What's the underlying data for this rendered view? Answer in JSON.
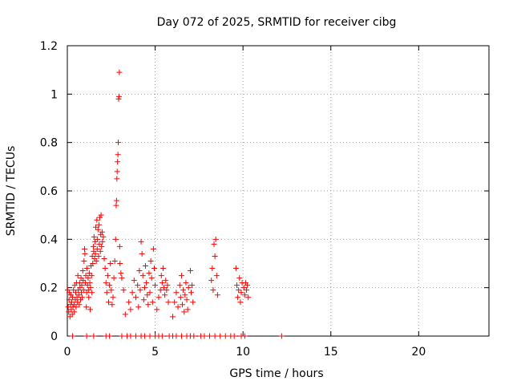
{
  "chart_data": {
    "type": "scatter",
    "title": "Day 072 of 2025, SRMTID for receiver cibg",
    "xlabel": "GPS time / hours",
    "ylabel": "SRMTID / TECUs",
    "xlim": [
      0,
      24
    ],
    "ylim": [
      0,
      1.2
    ],
    "xticks": [
      0,
      5,
      10,
      15,
      20
    ],
    "yticks": [
      0,
      0.2,
      0.4,
      0.6,
      0.8,
      1,
      1.2
    ],
    "xtick_labels": [
      "0",
      "5",
      "10",
      "15",
      "20"
    ],
    "ytick_labels": [
      "0",
      "0.2",
      "0.4",
      "0.6",
      "0.8",
      "1",
      "1.2"
    ],
    "grid": true,
    "marker": "+",
    "series": [
      {
        "name": "SRMTID",
        "color": "#ff0000",
        "points": [
          [
            0.02,
            0.19
          ],
          [
            0.05,
            0.12
          ],
          [
            0.08,
            0.1
          ],
          [
            0.1,
            0.15
          ],
          [
            0.12,
            0.18
          ],
          [
            0.15,
            0.08
          ],
          [
            0.18,
            0.13
          ],
          [
            0.2,
            0.17
          ],
          [
            0.22,
            0.11
          ],
          [
            0.25,
            0.14
          ],
          [
            0.28,
            0.09
          ],
          [
            0.3,
            0.16
          ],
          [
            0.32,
            0.12
          ],
          [
            0.35,
            0.19
          ],
          [
            0.38,
            0.13
          ],
          [
            0.4,
            0.1
          ],
          [
            0.42,
            0.21
          ],
          [
            0.45,
            0.15
          ],
          [
            0.48,
            0.18
          ],
          [
            0.5,
            0.12
          ],
          [
            0.52,
            0.22
          ],
          [
            0.55,
            0.16
          ],
          [
            0.58,
            0.14
          ],
          [
            0.6,
            0.25
          ],
          [
            0.62,
            0.19
          ],
          [
            0.65,
            0.17
          ],
          [
            0.68,
            0.13
          ],
          [
            0.7,
            0.22
          ],
          [
            0.72,
            0.2
          ],
          [
            0.75,
            0.15
          ],
          [
            0.78,
            0.24
          ],
          [
            0.8,
            0.18
          ],
          [
            0.82,
            0.21
          ],
          [
            0.85,
            0.16
          ],
          [
            0.88,
            0.27
          ],
          [
            0.9,
            0.23
          ],
          [
            0.92,
            0.19
          ],
          [
            0.95,
            0.31
          ],
          [
            0.98,
            0.36
          ],
          [
            1.0,
            0.34
          ],
          [
            1.02,
            0.22
          ],
          [
            1.05,
            0.25
          ],
          [
            1.08,
            0.12
          ],
          [
            1.1,
            0.18
          ],
          [
            1.12,
            0.28
          ],
          [
            1.15,
            0.21
          ],
          [
            1.18,
            0.24
          ],
          [
            1.2,
            0.19
          ],
          [
            1.22,
            0.16
          ],
          [
            1.25,
            0.26
          ],
          [
            1.28,
            0.22
          ],
          [
            1.3,
            0.11
          ],
          [
            1.32,
            0.2
          ],
          [
            1.35,
            0.29
          ],
          [
            1.38,
            0.25
          ],
          [
            1.4,
            0.18
          ],
          [
            1.42,
            0.33
          ],
          [
            1.45,
            0.3
          ],
          [
            1.48,
            0.37
          ],
          [
            1.5,
            0.35
          ],
          [
            1.52,
            0.41
          ],
          [
            1.55,
            0.32
          ],
          [
            1.58,
            0.39
          ],
          [
            1.6,
            0.34
          ],
          [
            1.62,
            0.45
          ],
          [
            1.65,
            0.31
          ],
          [
            1.68,
            0.48
          ],
          [
            1.7,
            0.36
          ],
          [
            1.72,
            0.4
          ],
          [
            1.75,
            0.44
          ],
          [
            1.78,
            0.33
          ],
          [
            1.8,
            0.46
          ],
          [
            1.82,
            0.38
          ],
          [
            1.85,
            0.49
          ],
          [
            1.88,
            0.35
          ],
          [
            1.9,
            0.42
          ],
          [
            1.92,
            0.5
          ],
          [
            1.95,
            0.37
          ],
          [
            1.98,
            0.43
          ],
          [
            2.0,
            0.39
          ],
          [
            2.05,
            0.41
          ],
          [
            2.1,
            0.32
          ],
          [
            2.15,
            0.28
          ],
          [
            2.2,
            0.22
          ],
          [
            2.25,
            0.18
          ],
          [
            2.3,
            0.25
          ],
          [
            2.35,
            0.14
          ],
          [
            2.4,
            0.21
          ],
          [
            2.45,
            0.3
          ],
          [
            2.5,
            0.19
          ],
          [
            2.55,
            0.13
          ],
          [
            2.6,
            0.16
          ],
          [
            2.65,
            0.24
          ],
          [
            2.7,
            0.31
          ],
          [
            2.75,
            0.4
          ],
          [
            2.78,
            0.54
          ],
          [
            2.8,
            0.56
          ],
          [
            2.82,
            0.65
          ],
          [
            2.84,
            0.68
          ],
          [
            2.86,
            0.72
          ],
          [
            2.88,
            0.75
          ],
          [
            2.9,
            0.8
          ],
          [
            2.92,
            0.98
          ],
          [
            2.94,
            0.99
          ],
          [
            2.96,
            1.09
          ],
          [
            2.98,
            0.37
          ],
          [
            3.0,
            0.3
          ],
          [
            3.05,
            0.26
          ],
          [
            3.1,
            0.24
          ],
          [
            3.2,
            0.19
          ],
          [
            3.3,
            0.09
          ],
          [
            3.5,
            0.14
          ],
          [
            3.6,
            0.11
          ],
          [
            3.7,
            0.18
          ],
          [
            3.8,
            0.23
          ],
          [
            3.9,
            0.16
          ],
          [
            4.0,
            0.21
          ],
          [
            4.05,
            0.12
          ],
          [
            4.1,
            0.27
          ],
          [
            4.15,
            0.19
          ],
          [
            4.2,
            0.39
          ],
          [
            4.25,
            0.34
          ],
          [
            4.3,
            0.25
          ],
          [
            4.35,
            0.15
          ],
          [
            4.4,
            0.2
          ],
          [
            4.45,
            0.29
          ],
          [
            4.5,
            0.22
          ],
          [
            4.55,
            0.17
          ],
          [
            4.6,
            0.13
          ],
          [
            4.65,
            0.26
          ],
          [
            4.7,
            0.18
          ],
          [
            4.75,
            0.31
          ],
          [
            4.8,
            0.24
          ],
          [
            4.85,
            0.14
          ],
          [
            4.9,
            0.36
          ],
          [
            4.95,
            0.28
          ],
          [
            5.0,
            0.21
          ],
          [
            5.1,
            0.11
          ],
          [
            5.2,
            0.16
          ],
          [
            5.3,
            0.19
          ],
          [
            5.35,
            0.25
          ],
          [
            5.4,
            0.22
          ],
          [
            5.45,
            0.28
          ],
          [
            5.5,
            0.2
          ],
          [
            5.55,
            0.17
          ],
          [
            5.6,
            0.23
          ],
          [
            5.65,
            0.19
          ],
          [
            5.7,
            0.21
          ],
          [
            5.75,
            0.14
          ],
          [
            6.0,
            0.08
          ],
          [
            6.1,
            0.14
          ],
          [
            6.2,
            0.18
          ],
          [
            6.3,
            0.12
          ],
          [
            6.4,
            0.21
          ],
          [
            6.45,
            0.16
          ],
          [
            6.5,
            0.25
          ],
          [
            6.55,
            0.13
          ],
          [
            6.6,
            0.19
          ],
          [
            6.65,
            0.1
          ],
          [
            6.7,
            0.17
          ],
          [
            6.75,
            0.22
          ],
          [
            6.8,
            0.15
          ],
          [
            6.85,
            0.11
          ],
          [
            6.9,
            0.2
          ],
          [
            7.0,
            0.27
          ],
          [
            7.05,
            0.18
          ],
          [
            7.1,
            0.21
          ],
          [
            7.15,
            0.14
          ],
          [
            8.2,
            0.23
          ],
          [
            8.25,
            0.28
          ],
          [
            8.3,
            0.19
          ],
          [
            8.35,
            0.38
          ],
          [
            8.4,
            0.33
          ],
          [
            8.45,
            0.4
          ],
          [
            8.5,
            0.25
          ],
          [
            8.55,
            0.17
          ],
          [
            9.6,
            0.28
          ],
          [
            9.65,
            0.21
          ],
          [
            9.7,
            0.16
          ],
          [
            9.75,
            0.19
          ],
          [
            9.8,
            0.24
          ],
          [
            9.85,
            0.14
          ],
          [
            9.9,
            0.18
          ],
          [
            9.95,
            0.22
          ],
          [
            10.05,
            0.2
          ],
          [
            10.1,
            0.17
          ],
          [
            10.15,
            0.22
          ],
          [
            10.2,
            0.19
          ],
          [
            10.25,
            0.21
          ],
          [
            10.3,
            0.16
          ],
          [
            0.3,
            0
          ],
          [
            1.1,
            0
          ],
          [
            1.5,
            0
          ],
          [
            2.2,
            0
          ],
          [
            2.4,
            0
          ],
          [
            3.1,
            0
          ],
          [
            3.4,
            0
          ],
          [
            3.6,
            0
          ],
          [
            3.9,
            0
          ],
          [
            4.2,
            0
          ],
          [
            4.4,
            0
          ],
          [
            4.7,
            0
          ],
          [
            5.0,
            0
          ],
          [
            5.2,
            0
          ],
          [
            5.4,
            0
          ],
          [
            5.8,
            0
          ],
          [
            6.0,
            0
          ],
          [
            6.2,
            0
          ],
          [
            6.5,
            0
          ],
          [
            6.8,
            0
          ],
          [
            7.0,
            0
          ],
          [
            7.2,
            0
          ],
          [
            7.6,
            0
          ],
          [
            7.8,
            0
          ],
          [
            8.1,
            0
          ],
          [
            8.4,
            0
          ],
          [
            8.7,
            0
          ],
          [
            9.0,
            0
          ],
          [
            9.3,
            0
          ],
          [
            9.5,
            0
          ],
          [
            9.9,
            0
          ],
          [
            10.1,
            0
          ],
          [
            12.2,
            0
          ]
        ]
      }
    ]
  }
}
